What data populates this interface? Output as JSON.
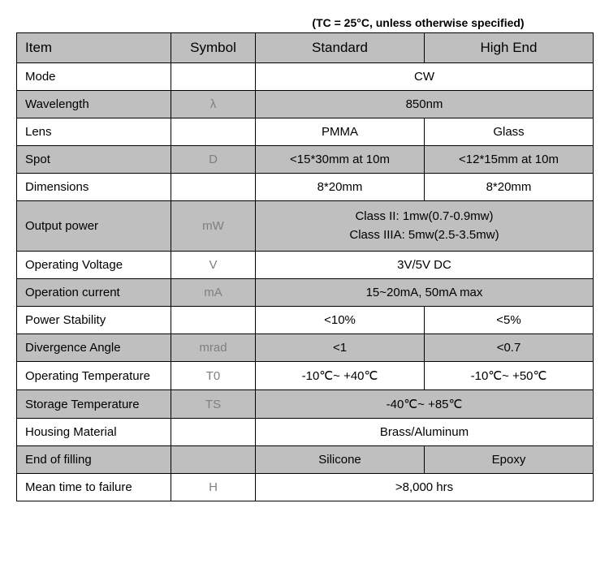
{
  "caption": "(TC = 25°C, unless otherwise specified)",
  "headers": {
    "item": "Item",
    "symbol": "Symbol",
    "standard": "Standard",
    "highend": "High End"
  },
  "rows": [
    {
      "shade": false,
      "item": "Mode",
      "symbol": "",
      "merged": true,
      "val": "CW"
    },
    {
      "shade": true,
      "item": "Wavelength",
      "symbol": "λ",
      "merged": true,
      "val": "850nm"
    },
    {
      "shade": false,
      "item": "Lens",
      "symbol": "",
      "merged": false,
      "std": "PMMA",
      "he": "Glass"
    },
    {
      "shade": true,
      "item": "Spot",
      "symbol": "D",
      "merged": false,
      "std": "<15*30mm at 10m",
      "he": "<12*15mm at 10m"
    },
    {
      "shade": false,
      "item": "Dimensions",
      "symbol": "",
      "merged": false,
      "std": "8*20mm",
      "he": "8*20mm"
    },
    {
      "shade": true,
      "item": "Output power",
      "symbol": "mW",
      "merged": true,
      "multiline": true,
      "val1": "Class II: 1mw(0.7-0.9mw)",
      "val2": "Class IIIA: 5mw(2.5-3.5mw)"
    },
    {
      "shade": false,
      "item": "Operating Voltage",
      "symbol": "V",
      "merged": true,
      "val": "3V/5V DC"
    },
    {
      "shade": true,
      "item": "Operation current",
      "symbol": "mA",
      "merged": true,
      "val": "15~20mA, 50mA max"
    },
    {
      "shade": false,
      "item": "Power Stability",
      "symbol": "",
      "merged": false,
      "std": "<10%",
      "he": "<5%"
    },
    {
      "shade": true,
      "item": "Divergence Angle",
      "symbol": "mrad",
      "merged": false,
      "std": "<1",
      "he": "<0.7"
    },
    {
      "shade": false,
      "item": "Operating Temperature",
      "symbol": "T0",
      "merged": false,
      "std": "-10℃~ +40℃",
      "he": "-10℃~ +50℃"
    },
    {
      "shade": true,
      "item": "Storage Temperature",
      "symbol": "TS",
      "merged": true,
      "val": "-40℃~ +85℃"
    },
    {
      "shade": false,
      "item": "Housing Material",
      "symbol": "",
      "merged": true,
      "val": "Brass/Aluminum"
    },
    {
      "shade": true,
      "item": "End of filling",
      "symbol": "",
      "merged": false,
      "std": "Silicone",
      "he": "Epoxy"
    },
    {
      "shade": false,
      "item": "Mean time to failure",
      "symbol": "H",
      "merged": true,
      "val": ">8,000 hrs"
    }
  ],
  "colors": {
    "shade_bg": "#bfbfbf",
    "plain_bg": "#ffffff",
    "border": "#000000",
    "symbol_text": "#7f7f7f",
    "text": "#000000"
  }
}
